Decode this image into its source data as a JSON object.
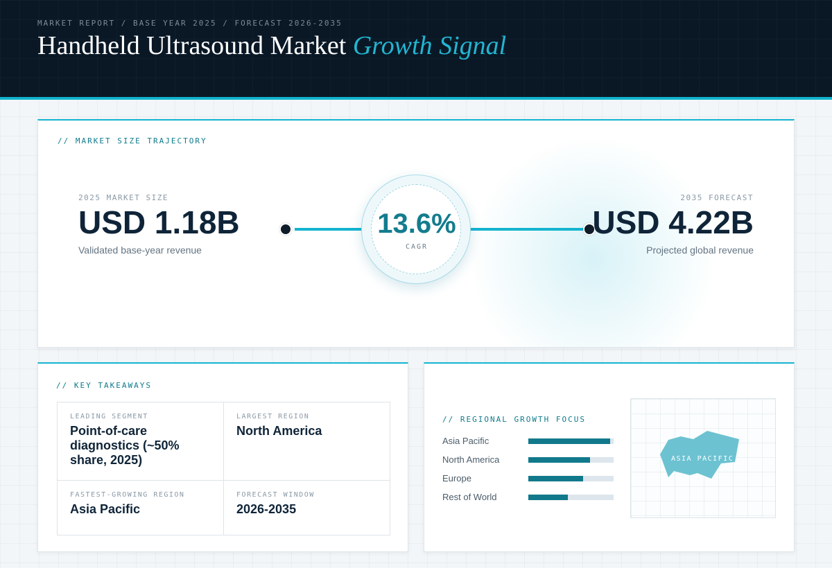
{
  "header": {
    "eyebrow": "MARKET REPORT / BASE YEAR 2025 / FORECAST 2026-2035",
    "title_main": "Handheld Ultrasound Market",
    "title_accent": "Growth Signal"
  },
  "trajectory": {
    "label": "// MARKET SIZE TRAJECTORY",
    "base": {
      "label": "2025 MARKET SIZE",
      "value": "USD 1.18B",
      "desc": "Validated base-year revenue"
    },
    "forecast": {
      "label": "2035 FORECAST",
      "value": "USD 4.22B",
      "desc": "Projected global revenue"
    },
    "cagr": {
      "value": "13.6%",
      "label": "CAGR"
    }
  },
  "takeaways": {
    "label": "// KEY TAKEAWAYS",
    "cells": [
      {
        "label": "LEADING SEGMENT",
        "value": "Point-of-care diagnostics (~50% share, 2025)"
      },
      {
        "label": "LARGEST REGION",
        "value": "North America"
      },
      {
        "label": "FASTEST-GROWING REGION",
        "value": "Asia Pacific"
      },
      {
        "label": "FORECAST WINDOW",
        "value": "2026-2035"
      }
    ]
  },
  "regional": {
    "label": "// REGIONAL GROWTH FOCUS",
    "bars": [
      {
        "name": "Asia Pacific",
        "level": 0.96
      },
      {
        "name": "North America",
        "level": 0.72
      },
      {
        "name": "Europe",
        "level": 0.64
      },
      {
        "name": "Rest of World",
        "level": 0.46
      }
    ],
    "map_label": "ASIA PACIFIC",
    "accent_color": "#11798b",
    "map_color": "#6cc2d1"
  }
}
